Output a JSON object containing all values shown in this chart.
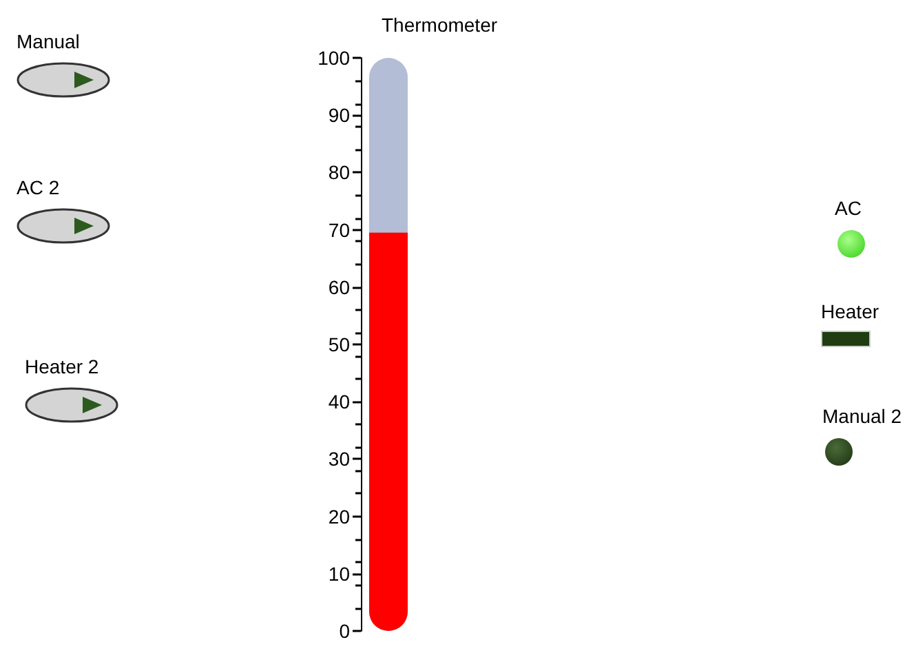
{
  "chart_data": {
    "type": "bar",
    "title": "Thermometer",
    "categories": [
      null
    ],
    "values": [
      69.5
    ],
    "color": "#ff0000",
    "ylim": [
      0,
      100
    ],
    "yticks": [
      0,
      10,
      20,
      30,
      40,
      50,
      60,
      70,
      80,
      90,
      100
    ],
    "grid": false,
    "annotations": [
      "Manual",
      "AC 2",
      "Heater 2",
      "AC",
      "Heater",
      "Manual 2"
    ]
  }
}
